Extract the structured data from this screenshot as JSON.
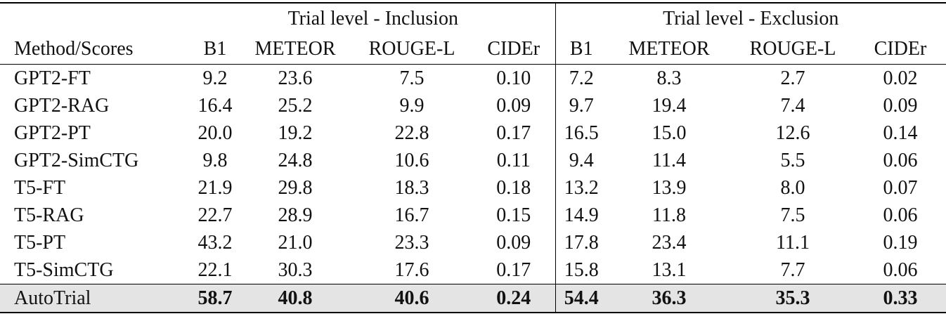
{
  "table": {
    "groups": [
      "Trial level - Inclusion",
      "Trial level - Exclusion"
    ],
    "columns": [
      "Method/Scores",
      "B1",
      "METEOR",
      "ROUGE-L",
      "CIDEr",
      "B1",
      "METEOR",
      "ROUGE-L",
      "CIDEr"
    ],
    "rows": [
      {
        "method": "GPT2-FT",
        "values": [
          "9.2",
          "23.6",
          "7.5",
          "0.10",
          "7.2",
          "8.3",
          "2.7",
          "0.02"
        ]
      },
      {
        "method": "GPT2-RAG",
        "values": [
          "16.4",
          "25.2",
          "9.9",
          "0.09",
          "9.7",
          "19.4",
          "7.4",
          "0.09"
        ]
      },
      {
        "method": "GPT2-PT",
        "values": [
          "20.0",
          "19.2",
          "22.8",
          "0.17",
          "16.5",
          "15.0",
          "12.6",
          "0.14"
        ]
      },
      {
        "method": "GPT2-SimCTG",
        "values": [
          "9.8",
          "24.8",
          "10.6",
          "0.11",
          "9.4",
          "11.4",
          "5.5",
          "0.06"
        ]
      },
      {
        "method": "T5-FT",
        "values": [
          "21.9",
          "29.8",
          "18.3",
          "0.18",
          "13.2",
          "13.9",
          "8.0",
          "0.07"
        ]
      },
      {
        "method": "T5-RAG",
        "values": [
          "22.7",
          "28.9",
          "16.7",
          "0.15",
          "14.9",
          "11.8",
          "7.5",
          "0.06"
        ]
      },
      {
        "method": "T5-PT",
        "values": [
          "43.2",
          "21.0",
          "23.3",
          "0.09",
          "17.8",
          "23.4",
          "11.1",
          "0.19"
        ]
      },
      {
        "method": "T5-SimCTG",
        "values": [
          "22.1",
          "30.3",
          "17.6",
          "0.17",
          "15.8",
          "13.1",
          "7.7",
          "0.06"
        ]
      }
    ],
    "highlight_row": {
      "method": "AutoTrial",
      "values": [
        "58.7",
        "40.8",
        "40.6",
        "0.24",
        "54.4",
        "36.3",
        "35.3",
        "0.33"
      ]
    },
    "highlight_color": "#e4e4e4"
  }
}
